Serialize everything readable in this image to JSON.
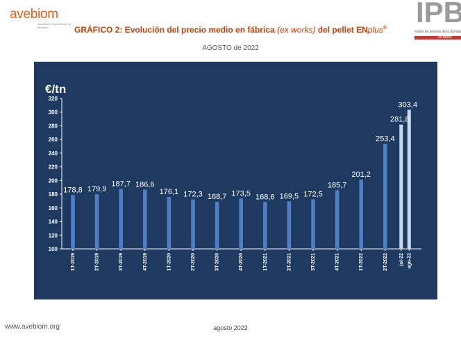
{
  "header": {
    "logo_left_text": "avebiom",
    "logo_left_tagline": "Asociación Española de la Biomasa",
    "logo_right_letters": "IPB",
    "logo_right_subtitle": "índice de precios de la biomasa",
    "logo_right_tag": "ex works",
    "title_main": "GRÁFICO 2: Evolución del precio medio en fábrica ",
    "title_italic": "(ex works)",
    "title_tail": " del pellet EN",
    "title_plus": "plus",
    "title_reg": "®",
    "subtitle": "AGOSTO de 2022"
  },
  "footer": {
    "website": "www.avebiom.org",
    "date": "agosto 2022"
  },
  "chart_data": {
    "type": "bar",
    "unit_label": "€/tn",
    "categories": [
      "1T-2019",
      "2T-2019",
      "3T-2019",
      "4T-2019",
      "1T-2020",
      "2T-2020",
      "3T-2020",
      "4T-2020",
      "1T-2021",
      "2T-2021",
      "3T-2021",
      "4T-2021",
      "1T-2022",
      "2T-2022",
      "jul-22",
      "ago-22"
    ],
    "values": [
      178.8,
      179.9,
      187.7,
      186.6,
      176.1,
      172.3,
      168.7,
      173.5,
      168.6,
      169.5,
      172.5,
      185.7,
      201.2,
      253.4,
      281.8,
      303.4
    ],
    "value_labels": [
      "178,8",
      "179,9",
      "187,7",
      "186,6",
      "176,1",
      "172,3",
      "168,7",
      "173,5",
      "168,6",
      "169,5",
      "172,5",
      "185,7",
      "201,2",
      "253,4",
      "281,8",
      "303,4"
    ],
    "ylim": [
      100,
      320
    ],
    "yticks": [
      100,
      120,
      140,
      160,
      180,
      200,
      220,
      240,
      260,
      280,
      300,
      320
    ],
    "highlight_categories": [
      "jul-22",
      "ago-22"
    ],
    "colors": {
      "background": "#1f3a61",
      "bar": "#4f7fc4",
      "bar_highlight": "#c9d9f0",
      "text": "#ffffff"
    }
  }
}
